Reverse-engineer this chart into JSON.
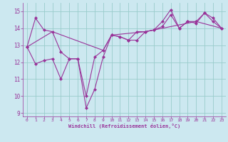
{
  "xlabel": "Windchill (Refroidissement éolien,°C)",
  "background_color": "#cce8f0",
  "grid_color": "#99cccc",
  "line_color": "#993399",
  "ylim": [
    8.8,
    15.5
  ],
  "xlim": [
    -0.5,
    23.5
  ],
  "yticks": [
    9,
    10,
    11,
    12,
    13,
    14,
    15
  ],
  "xticks": [
    0,
    1,
    2,
    3,
    4,
    5,
    6,
    7,
    8,
    9,
    10,
    11,
    12,
    13,
    14,
    15,
    16,
    17,
    18,
    19,
    20,
    21,
    22,
    23
  ],
  "line1_x": [
    0,
    1,
    2,
    3,
    4,
    5,
    6,
    7,
    8,
    9,
    10,
    11,
    12,
    13,
    14,
    15,
    16,
    17,
    18,
    19,
    20,
    21,
    22,
    23
  ],
  "line1_y": [
    12.9,
    14.6,
    13.9,
    13.8,
    12.6,
    12.2,
    12.2,
    9.3,
    10.4,
    12.3,
    13.6,
    13.5,
    13.3,
    13.3,
    13.8,
    13.9,
    14.4,
    15.1,
    14.0,
    14.4,
    14.4,
    14.9,
    14.6,
    14.0
  ],
  "line2_x": [
    0,
    1,
    2,
    3,
    4,
    5,
    6,
    7,
    8,
    9,
    10,
    11,
    12,
    13,
    14,
    15,
    16,
    17,
    18,
    19,
    20,
    21,
    22,
    23
  ],
  "line2_y": [
    12.9,
    11.9,
    12.1,
    12.2,
    11.0,
    12.2,
    12.2,
    10.0,
    12.3,
    12.7,
    13.6,
    13.5,
    13.3,
    13.8,
    13.8,
    13.9,
    14.1,
    14.8,
    14.0,
    14.4,
    14.3,
    14.9,
    14.4,
    14.0
  ],
  "line3_x": [
    0,
    3,
    9,
    10,
    14,
    20,
    23
  ],
  "line3_y": [
    12.9,
    13.8,
    12.7,
    13.6,
    13.8,
    14.4,
    14.0
  ]
}
